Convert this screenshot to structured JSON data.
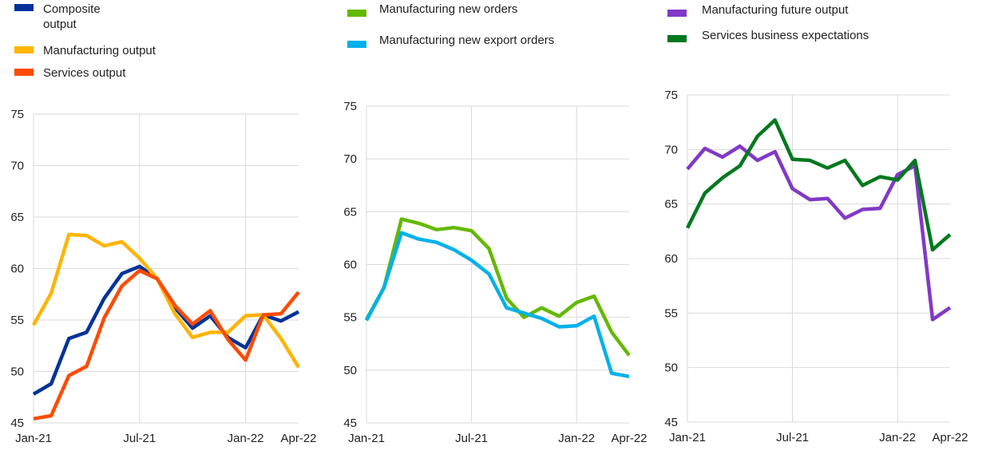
{
  "chart_data": [
    {
      "type": "line",
      "x": [
        "Jan-21",
        "Feb-21",
        "Mar-21",
        "Apr-21",
        "May-21",
        "Jun-21",
        "Jul-21",
        "Aug-21",
        "Sep-21",
        "Oct-21",
        "Nov-21",
        "Dec-21",
        "Jan-22",
        "Feb-22",
        "Mar-22",
        "Apr-22"
      ],
      "tick_labels": [
        "Jan-21",
        "Jul-21",
        "Jan-22",
        "Apr-22"
      ],
      "ylim": [
        45,
        75
      ],
      "yticks": [
        45,
        50,
        55,
        60,
        65,
        70,
        75
      ],
      "grid": true,
      "legend_position": "top",
      "series": [
        {
          "name": "Composite output",
          "name_lines": [
            "Composite",
            "output"
          ],
          "color": "#003299",
          "values": [
            47.8,
            48.8,
            53.2,
            53.8,
            57.1,
            59.5,
            60.2,
            59.0,
            56.2,
            54.2,
            55.4,
            53.3,
            52.3,
            55.5,
            54.9,
            55.8
          ]
        },
        {
          "name": "Manufacturing output",
          "color": "#FFB400",
          "values": [
            54.5,
            57.6,
            63.3,
            63.2,
            62.2,
            62.6,
            61.0,
            59.0,
            55.6,
            53.3,
            53.8,
            53.8,
            55.4,
            55.5,
            53.2,
            50.4
          ]
        },
        {
          "name": "Services output",
          "color": "#FF4B00",
          "values": [
            45.4,
            45.7,
            49.6,
            50.5,
            55.2,
            58.3,
            59.8,
            59.0,
            56.4,
            54.6,
            55.9,
            53.1,
            51.1,
            55.5,
            55.6,
            57.7
          ]
        }
      ]
    },
    {
      "type": "line",
      "x": [
        "Jan-21",
        "Feb-21",
        "Mar-21",
        "Apr-21",
        "May-21",
        "Jun-21",
        "Jul-21",
        "Aug-21",
        "Sep-21",
        "Oct-21",
        "Nov-21",
        "Dec-21",
        "Jan-22",
        "Feb-22",
        "Mar-22",
        "Apr-22"
      ],
      "tick_labels": [
        "Jan-21",
        "Jul-21",
        "Jan-22",
        "Apr-22"
      ],
      "ylim": [
        45,
        75
      ],
      "yticks": [
        45,
        50,
        55,
        60,
        65,
        70,
        75
      ],
      "grid": true,
      "legend_position": "top",
      "series": [
        {
          "name": "Manufacturing new orders",
          "color": "#65B800",
          "values": [
            54.8,
            57.8,
            64.3,
            63.9,
            63.3,
            63.5,
            63.2,
            61.5,
            56.8,
            55.0,
            55.9,
            55.1,
            56.4,
            57.0,
            53.6,
            51.4
          ]
        },
        {
          "name": "Manufacturing new export orders",
          "color": "#00B1EA",
          "values": [
            54.7,
            57.8,
            63.0,
            62.4,
            62.1,
            61.4,
            60.4,
            59.1,
            55.9,
            55.4,
            54.9,
            54.1,
            54.2,
            55.1,
            49.7,
            49.4
          ]
        }
      ]
    },
    {
      "type": "line",
      "x": [
        "Jan-21",
        "Feb-21",
        "Mar-21",
        "Apr-21",
        "May-21",
        "Jun-21",
        "Jul-21",
        "Aug-21",
        "Sep-21",
        "Oct-21",
        "Nov-21",
        "Dec-21",
        "Jan-22",
        "Feb-22",
        "Mar-22",
        "Apr-22"
      ],
      "tick_labels": [
        "Jan-21",
        "Jul-21",
        "Jan-22",
        "Apr-22"
      ],
      "ylim": [
        45,
        75
      ],
      "yticks": [
        45,
        50,
        55,
        60,
        65,
        70,
        75
      ],
      "grid": true,
      "legend_position": "top",
      "series": [
        {
          "name": "Manufacturing future output",
          "color": "#8139C6",
          "values": [
            68.2,
            70.1,
            69.3,
            70.3,
            69.0,
            69.8,
            66.4,
            65.4,
            65.5,
            63.7,
            64.5,
            64.6,
            67.7,
            68.5,
            54.4,
            55.5
          ]
        },
        {
          "name": "Services business expectations",
          "color": "#00781F",
          "values": [
            62.8,
            66.0,
            67.4,
            68.5,
            71.2,
            72.7,
            69.1,
            69.0,
            68.3,
            69.0,
            66.7,
            67.5,
            67.2,
            69.0,
            60.8,
            62.2
          ]
        }
      ]
    }
  ]
}
